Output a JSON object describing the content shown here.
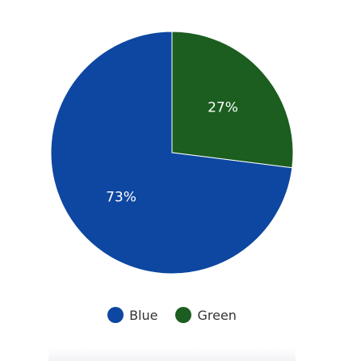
{
  "chart_data": {
    "type": "pie",
    "title": "",
    "slices": [
      {
        "name": "Blue",
        "value": 73,
        "label": "73%",
        "color": "#0e47a1"
      },
      {
        "name": "Green",
        "value": 27,
        "label": "27%",
        "color": "#1b5e20"
      }
    ],
    "legend_position": "bottom",
    "start": "top",
    "direction": "clockwise"
  },
  "legend": {
    "items": [
      {
        "label": "Blue",
        "color": "#0e47a1"
      },
      {
        "label": "Green",
        "color": "#1b5e20"
      }
    ]
  }
}
